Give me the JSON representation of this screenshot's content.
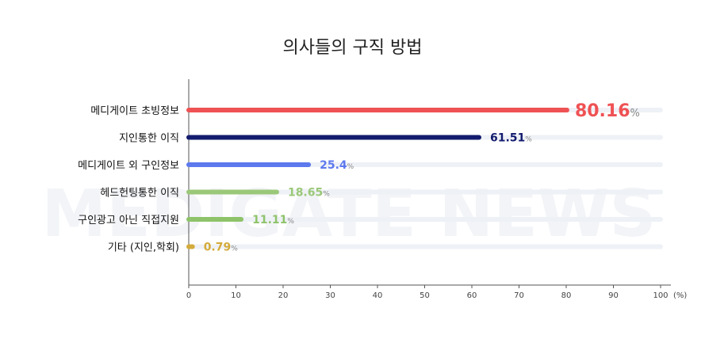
{
  "chart_data": {
    "type": "bar",
    "orientation": "horizontal",
    "title": "의사들의 구직 방법",
    "categories": [
      "메디게이트 초빙정보",
      "지인통한 이직",
      "메디게이트 외 구인정보",
      "헤드헌팅통한 이직",
      "구인광고 아닌 직접지원",
      "기타 (지인,학회)"
    ],
    "values": [
      80.16,
      61.51,
      25.4,
      18.65,
      11.11,
      0.79
    ],
    "value_labels": [
      "80.16",
      "61.51",
      "25.4",
      "18.65",
      "11.11",
      "0.79"
    ],
    "value_unit": "%",
    "colors": [
      "#ef5254",
      "#131c6e",
      "#5d79ee",
      "#9bc878",
      "#8ec36a",
      "#d4ab3a"
    ],
    "xlim": [
      0,
      100
    ],
    "xticks": [
      "0",
      "10",
      "20",
      "30",
      "40",
      "50",
      "60",
      "70",
      "80",
      "90",
      "100"
    ],
    "xunit": "(%)",
    "grid": false,
    "watermark": "MEDIGATE NEWS"
  }
}
